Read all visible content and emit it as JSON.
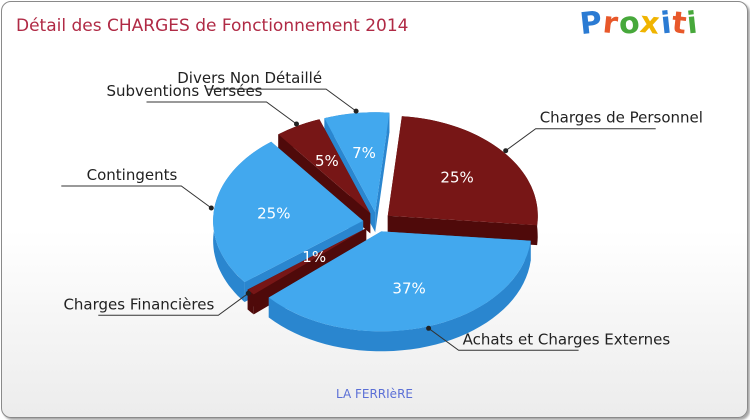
{
  "title": "Détail des CHARGES de Fonctionnement 2014",
  "logo": {
    "letters": [
      "P",
      "r",
      "o",
      "x",
      "i",
      "t",
      "i"
    ],
    "colors": [
      "#2b7bd3",
      "#e8582a",
      "#47a83b",
      "#f0b400",
      "#2b7bd3",
      "#e8582a",
      "#47a83b"
    ]
  },
  "caption": "LA FERRIèRE",
  "colors": {
    "blue": "#42a8ee",
    "blue_side": "#2a86cf",
    "red": "#771616",
    "red_side": "#4f0a0a",
    "title": "#b02a45",
    "caption": "#5b6fd6"
  },
  "chart_data": {
    "type": "pie",
    "title": "Détail des CHARGES de Fonctionnement 2014",
    "unit": "%",
    "slices": [
      {
        "label": "Charges de Personnel",
        "value": 25,
        "value_label": "25%",
        "color": "#771616"
      },
      {
        "label": "Achats et Charges Externes",
        "value": 37,
        "value_label": "37%",
        "color": "#42a8ee"
      },
      {
        "label": "Charges Financières",
        "value": 1,
        "value_label": "1%",
        "color": "#771616"
      },
      {
        "label": "Contingents",
        "value": 25,
        "value_label": "25%",
        "color": "#42a8ee"
      },
      {
        "label": "Subventions Versées",
        "value": 5,
        "value_label": "5%",
        "color": "#771616"
      },
      {
        "label": "Divers Non Détaillé",
        "value": 7,
        "value_label": "7%",
        "color": "#42a8ee"
      }
    ]
  }
}
